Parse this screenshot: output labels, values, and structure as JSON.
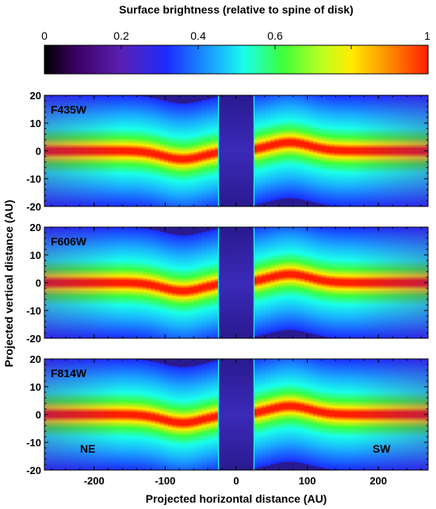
{
  "chart_data": {
    "type": "heatmap",
    "colorbar": {
      "title": "Surface brightness (relative to spine of disk)",
      "range": [
        0,
        1
      ],
      "ticks": [
        0,
        0.2,
        0.4,
        0.6,
        0.8,
        1
      ],
      "tick_labels": [
        "0",
        "0.2",
        "0.4",
        "0.6",
        "",
        "1"
      ],
      "colormap": "rainbow (black-purple-blue-cyan-green-yellow-red)"
    },
    "xlabel": "Projected horizontal distance (AU)",
    "ylabel": "Projected vertical distance (AU)",
    "xlim": [
      -270,
      270
    ],
    "ylim": [
      -20,
      20
    ],
    "x_ticks": [
      -200,
      -100,
      0,
      100,
      200
    ],
    "x_tick_labels": [
      "-200",
      "-100",
      "0",
      "100",
      "200"
    ],
    "y_ticks": [
      -20,
      -10,
      0,
      10,
      20
    ],
    "y_tick_labels": [
      "-20",
      "-10",
      "0",
      "10",
      "20"
    ],
    "occulted_region_x": [
      -25,
      25
    ],
    "panels": [
      {
        "label": "F435W",
        "side_labels": [
          "",
          ""
        ]
      },
      {
        "label": "F606W",
        "side_labels": [
          "",
          ""
        ]
      },
      {
        "label": "F814W",
        "side_labels": [
          "NE",
          "SW"
        ]
      }
    ],
    "description_values": {
      "spine_brightness": 1.0,
      "warp_peak_x_AU": [
        -75,
        75
      ],
      "warp_offset_AU": 3
    }
  },
  "colors": {
    "stops": [
      "#000000",
      "#3a0060",
      "#5a1fb0",
      "#1a2cff",
      "#19b0ff",
      "#19ffe9",
      "#3cff3c",
      "#b9ff1f",
      "#ffeb00",
      "#ff8a00",
      "#ff1e00"
    ]
  }
}
